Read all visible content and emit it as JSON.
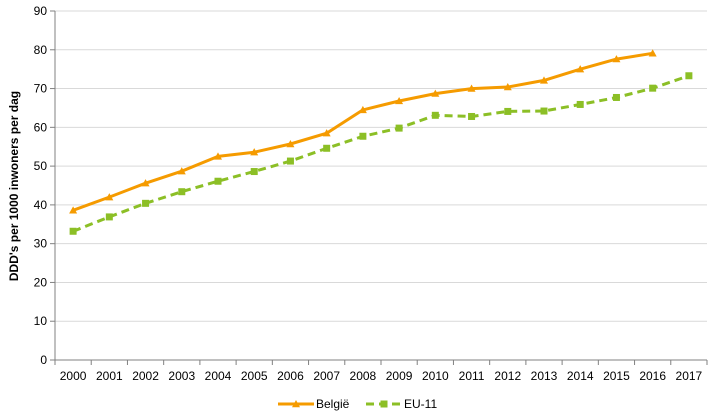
{
  "chart_data": {
    "type": "line",
    "ylabel": "DDD's per 1000 inwoners per dag",
    "xlabel": "",
    "ylim": [
      0,
      90
    ],
    "yticks": [
      0,
      10,
      20,
      30,
      40,
      50,
      60,
      70,
      80,
      90
    ],
    "grid": true,
    "legend_position": "bottom",
    "categories": [
      "2000",
      "2001",
      "2002",
      "2003",
      "2004",
      "2005",
      "2006",
      "2007",
      "2008",
      "2009",
      "2010",
      "2011",
      "2012",
      "2013",
      "2014",
      "2015",
      "2016",
      "2017"
    ],
    "series": [
      {
        "name": "België",
        "color": "#f59b00",
        "line_style": "solid",
        "marker": "triangle",
        "values": [
          38.6,
          42.0,
          45.6,
          48.7,
          52.5,
          53.6,
          55.7,
          58.5,
          64.5,
          66.8,
          68.7,
          70.0,
          70.4,
          72.1,
          75.0,
          77.6,
          79.1,
          null
        ]
      },
      {
        "name": "EU-11",
        "color": "#8cbf26",
        "line_style": "dashed",
        "marker": "square",
        "values": [
          33.2,
          36.9,
          40.4,
          43.4,
          46.1,
          48.6,
          51.3,
          54.6,
          57.7,
          59.8,
          63.1,
          62.8,
          64.1,
          64.2,
          65.9,
          67.7,
          70.1,
          73.3
        ]
      }
    ]
  }
}
